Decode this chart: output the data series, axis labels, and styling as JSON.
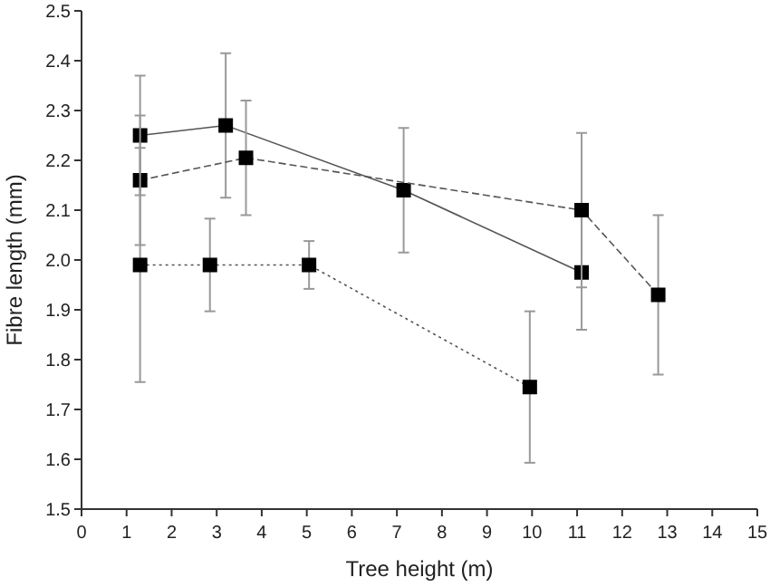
{
  "chart_data": {
    "type": "line",
    "xlabel": "Tree height (m)",
    "ylabel": "Fibre length (mm)",
    "xlim": [
      0,
      15
    ],
    "ylim": [
      1.5,
      2.5
    ],
    "xticks": [
      0,
      1,
      2,
      3,
      4,
      5,
      6,
      7,
      8,
      9,
      10,
      11,
      12,
      13,
      14,
      15
    ],
    "yticks": [
      1.5,
      1.6,
      1.7,
      1.8,
      1.9,
      {
        "value": 2,
        "label": "2.0"
      },
      2.1,
      2.2,
      2.3,
      2.4,
      2.5
    ],
    "marker": "square",
    "series": [
      {
        "color": "#555555",
        "line_style": "solid",
        "x": [
          1.3,
          3.2,
          7.15,
          11.1
        ],
        "values": [
          2.25,
          2.27,
          2.14,
          1.975
        ],
        "errors": [
          0.12,
          0.145,
          0.125,
          0.115
        ]
      },
      {
        "color": "#555555",
        "line_style": "dashed",
        "x": [
          1.3,
          3.65,
          11.1,
          12.8
        ],
        "values": [
          2.16,
          2.205,
          2.1,
          1.93
        ],
        "errors": [
          0.13,
          0.115,
          0.155,
          0.16
        ]
      },
      {
        "color": "#555555",
        "line_style": "dotted",
        "x": [
          1.3,
          2.85,
          5.05,
          9.95
        ],
        "values": [
          1.99,
          1.99,
          1.99,
          1.745
        ],
        "errors": [
          0.235,
          0.093,
          0.048,
          0.152
        ]
      }
    ]
  }
}
